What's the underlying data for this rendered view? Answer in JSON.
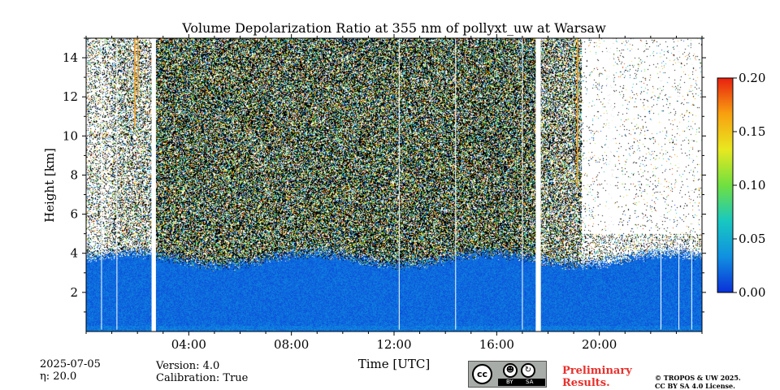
{
  "chart_data": {
    "type": "heatmap",
    "title": "Volume Depolarization Ratio at 355 nm of pollyxt_uw at Warsaw",
    "xlabel": "Time [UTC]",
    "ylabel": "Height [km]",
    "xlim_hours": [
      0,
      24
    ],
    "ylim_km": [
      0,
      15
    ],
    "x_ticks": [
      {
        "hour": 4,
        "label": "04:00"
      },
      {
        "hour": 8,
        "label": "08:00"
      },
      {
        "hour": 12,
        "label": "12:00"
      },
      {
        "hour": 16,
        "label": "16:00"
      },
      {
        "hour": 20,
        "label": "20:00"
      }
    ],
    "y_ticks": [
      {
        "km": 2,
        "label": "2"
      },
      {
        "km": 4,
        "label": "4"
      },
      {
        "km": 6,
        "label": "6"
      },
      {
        "km": 8,
        "label": "8"
      },
      {
        "km": 10,
        "label": "10"
      },
      {
        "km": 12,
        "label": "12"
      },
      {
        "km": 14,
        "label": "14"
      }
    ],
    "colorbar": {
      "range": [
        0.0,
        0.2
      ],
      "ticks": [
        {
          "value": 0.0,
          "label": "0.00"
        },
        {
          "value": 0.05,
          "label": "0.05"
        },
        {
          "value": 0.1,
          "label": "0.10"
        },
        {
          "value": 0.15,
          "label": "0.15"
        },
        {
          "value": 0.2,
          "label": "0.20"
        }
      ],
      "colors": [
        "#0a30d8",
        "#1090e0",
        "#18c8c0",
        "#70e040",
        "#e8e820",
        "#f8a010",
        "#e82010"
      ]
    },
    "boundary_layer_top_km": 3.7,
    "no_data_gaps_hours": [
      [
        2.55,
        2.72
      ],
      [
        17.52,
        17.72
      ]
    ],
    "thin_gap_lines_hours": [
      0.6,
      1.2,
      12.2,
      14.4,
      17.0,
      22.4,
      23.1,
      23.6
    ],
    "orange_lines": [
      {
        "hour": 1.9,
        "from_km": 10.5,
        "to_km": 15
      },
      {
        "hour": 2.02,
        "from_km": 12.0,
        "to_km": 15
      },
      {
        "hour": 19.15,
        "from_km": 7.4,
        "to_km": 15
      }
    ],
    "clear_sky_region_hours": [
      19.3,
      24
    ],
    "clear_strip_hours": [
      20.3,
      20.55
    ]
  },
  "footer": {
    "date": "2025-07-05",
    "eta": "η: 20.0",
    "version": "Version: 4.0",
    "calibration": "Calibration: True",
    "preliminary_line1": "Preliminary",
    "preliminary_line2": "Results.",
    "copyright_line1": "© TROPOS & UW 2025.",
    "copyright_line2": "CC BY SA 4.0 License.",
    "license_badge": {
      "main": "cc",
      "bar_left": "BY",
      "bar_right": "SA",
      "icon1": "person-icon",
      "icon2": "share-alike-icon"
    }
  },
  "colors": {
    "prelim_red": "#e8302c"
  }
}
